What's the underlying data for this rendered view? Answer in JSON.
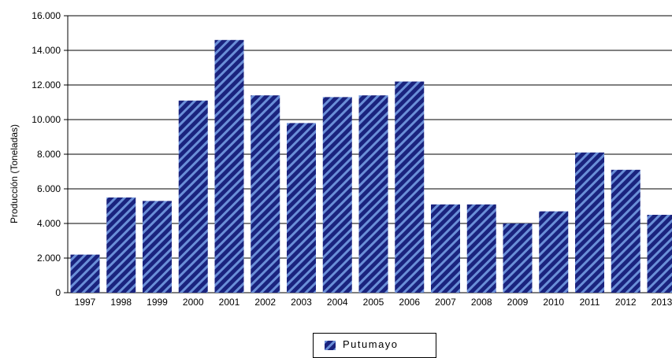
{
  "chart_data": {
    "type": "bar",
    "ylabel": "Producción (Toneladas)",
    "xlabel": "",
    "categories": [
      "1997",
      "1998",
      "1999",
      "2000",
      "2001",
      "2002",
      "2003",
      "2004",
      "2005",
      "2006",
      "2007",
      "2008",
      "2009",
      "2010",
      "2011",
      "2012",
      "2013"
    ],
    "series": [
      {
        "name": "Putumayo",
        "values": [
          2200,
          5500,
          5300,
          11100,
          14600,
          11400,
          9800,
          11300,
          11400,
          12200,
          5100,
          5100,
          4000,
          4700,
          8100,
          7100,
          4500
        ]
      }
    ],
    "ylim": [
      0,
      16000
    ],
    "yticks": [
      0,
      2000,
      4000,
      6000,
      8000,
      10000,
      12000,
      14000,
      16000
    ],
    "ytick_labels": [
      "0",
      "2.000",
      "4.000",
      "6.000",
      "8.000",
      "10.000",
      "12.000",
      "14.000",
      "16.000"
    ],
    "grid": true,
    "legend_position": "bottom-center",
    "colors": {
      "bar_base": "#1a237e",
      "bar_stripe": "#6a8fd8",
      "gridline": "#000000"
    }
  }
}
